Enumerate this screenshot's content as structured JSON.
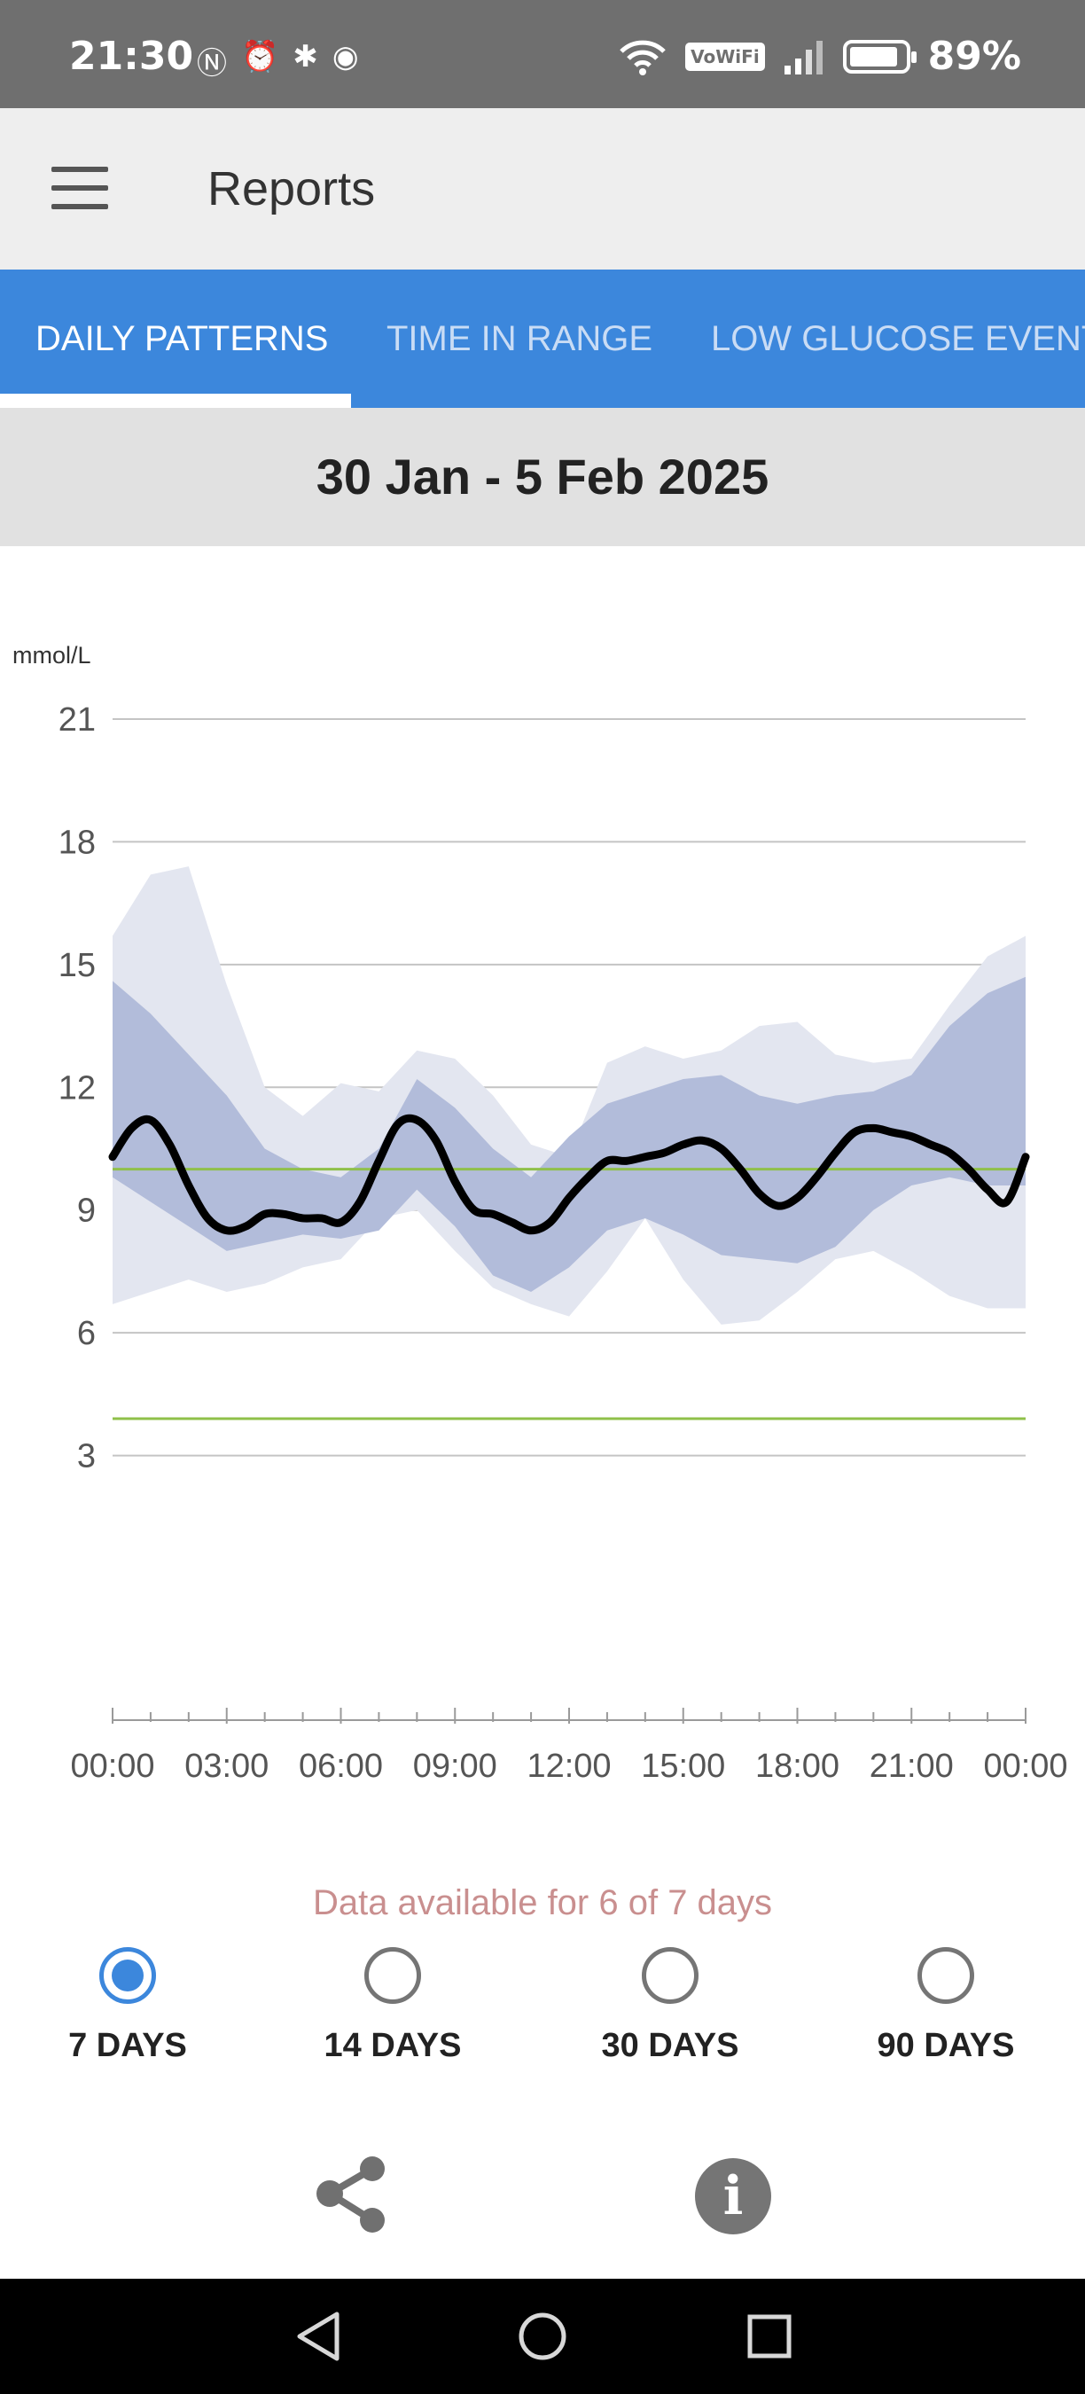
{
  "status_bar": {
    "time": "21:30",
    "left_icons": [
      "nfc-icon",
      "alarm-icon",
      "bluetooth-icon",
      "record-icon"
    ],
    "vowifi_label": "VoWiFi",
    "battery_percent": "89%",
    "battery_level": 0.89
  },
  "app_bar": {
    "title": "Reports"
  },
  "tabs": [
    {
      "label": "DAILY PATTERNS",
      "active": true
    },
    {
      "label": "TIME IN RANGE",
      "active": false
    },
    {
      "label": "LOW GLUCOSE EVENTS",
      "active": false
    }
  ],
  "date_range": "30 Jan - 5 Feb 2025",
  "chart_data": {
    "type": "line",
    "ylabel": "mmol/L",
    "ylim": [
      0,
      21
    ],
    "y_ticks": [
      21,
      18,
      15,
      12,
      9,
      6,
      3
    ],
    "x_tick_labels": [
      "00:00",
      "03:00",
      "06:00",
      "09:00",
      "12:00",
      "15:00",
      "18:00",
      "21:00",
      "00:00"
    ],
    "x_range_hours": [
      0,
      24
    ],
    "grid": true,
    "target_range": [
      3.9,
      10.0
    ],
    "target_line_color": "#8fc04a",
    "series": [
      {
        "role": "median",
        "color": "#000000",
        "points": [
          [
            0,
            10.3
          ],
          [
            0.5,
            11.0
          ],
          [
            1,
            11.2
          ],
          [
            1.5,
            10.6
          ],
          [
            2,
            9.6
          ],
          [
            2.5,
            8.8
          ],
          [
            3,
            8.5
          ],
          [
            3.5,
            8.6
          ],
          [
            4,
            8.9
          ],
          [
            4.5,
            8.9
          ],
          [
            5,
            8.8
          ],
          [
            5.5,
            8.8
          ],
          [
            6,
            8.7
          ],
          [
            6.5,
            9.2
          ],
          [
            7,
            10.2
          ],
          [
            7.5,
            11.1
          ],
          [
            8,
            11.2
          ],
          [
            8.5,
            10.7
          ],
          [
            9,
            9.7
          ],
          [
            9.5,
            9.0
          ],
          [
            10,
            8.9
          ],
          [
            10.5,
            8.7
          ],
          [
            11,
            8.5
          ],
          [
            11.5,
            8.7
          ],
          [
            12,
            9.3
          ],
          [
            12.5,
            9.8
          ],
          [
            13,
            10.2
          ],
          [
            13.5,
            10.2
          ],
          [
            14,
            10.3
          ],
          [
            14.5,
            10.4
          ],
          [
            15,
            10.6
          ],
          [
            15.5,
            10.7
          ],
          [
            16,
            10.5
          ],
          [
            16.5,
            10.0
          ],
          [
            17,
            9.4
          ],
          [
            17.5,
            9.1
          ],
          [
            18,
            9.3
          ],
          [
            18.5,
            9.8
          ],
          [
            19,
            10.4
          ],
          [
            19.5,
            10.9
          ],
          [
            20,
            11.0
          ],
          [
            20.5,
            10.9
          ],
          [
            21,
            10.8
          ],
          [
            21.5,
            10.6
          ],
          [
            22,
            10.4
          ],
          [
            22.5,
            10.0
          ],
          [
            23,
            9.5
          ],
          [
            23.5,
            9.2
          ],
          [
            24,
            10.3
          ]
        ]
      },
      {
        "role": "25th-75th percentile band",
        "color": "#b2bcda",
        "upper": [
          [
            0,
            14.6
          ],
          [
            1,
            13.8
          ],
          [
            2,
            12.8
          ],
          [
            3,
            11.8
          ],
          [
            4,
            10.5
          ],
          [
            5,
            10.0
          ],
          [
            6,
            9.8
          ],
          [
            7,
            10.5
          ],
          [
            8,
            12.2
          ],
          [
            9,
            11.5
          ],
          [
            10,
            10.5
          ],
          [
            11,
            9.8
          ],
          [
            12,
            10.8
          ],
          [
            13,
            11.6
          ],
          [
            14,
            11.9
          ],
          [
            15,
            12.2
          ],
          [
            16,
            12.3
          ],
          [
            17,
            11.8
          ],
          [
            18,
            11.6
          ],
          [
            19,
            11.8
          ],
          [
            20,
            11.9
          ],
          [
            21,
            12.3
          ],
          [
            22,
            13.5
          ],
          [
            23,
            14.3
          ],
          [
            24,
            14.7
          ]
        ],
        "lower": [
          [
            0,
            9.8
          ],
          [
            1,
            9.2
          ],
          [
            2,
            8.6
          ],
          [
            3,
            8.0
          ],
          [
            4,
            8.2
          ],
          [
            5,
            8.4
          ],
          [
            6,
            8.3
          ],
          [
            7,
            8.5
          ],
          [
            8,
            9.5
          ],
          [
            9,
            8.6
          ],
          [
            10,
            7.4
          ],
          [
            11,
            7.0
          ],
          [
            12,
            7.6
          ],
          [
            13,
            8.5
          ],
          [
            14,
            8.8
          ],
          [
            15,
            8.4
          ],
          [
            16,
            7.9
          ],
          [
            17,
            7.8
          ],
          [
            18,
            7.7
          ],
          [
            19,
            8.1
          ],
          [
            20,
            9.0
          ],
          [
            21,
            9.6
          ],
          [
            22,
            9.8
          ],
          [
            23,
            9.6
          ],
          [
            24,
            9.6
          ]
        ]
      },
      {
        "role": "10th-90th percentile band",
        "color": "#e3e6f0",
        "upper": [
          [
            0,
            15.7
          ],
          [
            1,
            17.2
          ],
          [
            2,
            17.4
          ],
          [
            3,
            14.5
          ],
          [
            4,
            12.0
          ],
          [
            5,
            11.3
          ],
          [
            6,
            12.1
          ],
          [
            7,
            11.9
          ],
          [
            8,
            12.9
          ],
          [
            9,
            12.7
          ],
          [
            10,
            11.8
          ],
          [
            11,
            10.6
          ],
          [
            12,
            10.3
          ],
          [
            13,
            12.6
          ],
          [
            14,
            13.0
          ],
          [
            15,
            12.7
          ],
          [
            16,
            12.9
          ],
          [
            17,
            13.5
          ],
          [
            18,
            13.6
          ],
          [
            19,
            12.8
          ],
          [
            20,
            12.6
          ],
          [
            21,
            12.7
          ],
          [
            22,
            14.0
          ],
          [
            23,
            15.2
          ],
          [
            24,
            15.7
          ]
        ],
        "lower": [
          [
            0,
            6.7
          ],
          [
            1,
            7.0
          ],
          [
            2,
            7.3
          ],
          [
            3,
            7.0
          ],
          [
            4,
            7.2
          ],
          [
            5,
            7.6
          ],
          [
            6,
            7.8
          ],
          [
            7,
            8.8
          ],
          [
            8,
            9.0
          ],
          [
            9,
            8.0
          ],
          [
            10,
            7.1
          ],
          [
            11,
            6.7
          ],
          [
            12,
            6.4
          ],
          [
            13,
            7.5
          ],
          [
            14,
            8.8
          ],
          [
            15,
            7.3
          ],
          [
            16,
            6.2
          ],
          [
            17,
            6.3
          ],
          [
            18,
            7.0
          ],
          [
            19,
            7.8
          ],
          [
            20,
            8.0
          ],
          [
            21,
            7.5
          ],
          [
            22,
            6.9
          ],
          [
            23,
            6.6
          ],
          [
            24,
            6.6
          ]
        ]
      }
    ]
  },
  "data_note": "Data available for 6 of 7 days",
  "periods": [
    {
      "label": "7 DAYS",
      "selected": true
    },
    {
      "label": "14 DAYS",
      "selected": false
    },
    {
      "label": "30 DAYS",
      "selected": false
    },
    {
      "label": "90 DAYS",
      "selected": false
    }
  ],
  "actions": {
    "share_icon": "share-icon",
    "info_icon": "info-icon",
    "info_glyph": "i"
  },
  "colors": {
    "accent": "#3c87dc",
    "status_bar": "#6f6f6f",
    "app_bar": "#eeeeee",
    "date_bar": "#e1e1e1",
    "note_text": "#c98f8f",
    "nav_bar": "#000000"
  }
}
